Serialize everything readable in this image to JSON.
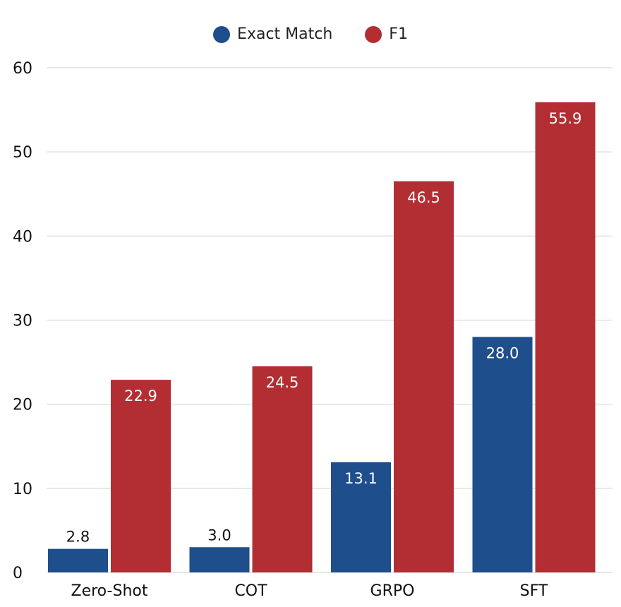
{
  "chart_data": {
    "type": "bar",
    "categories": [
      "Zero-Shot",
      "COT",
      "GRPO",
      "SFT"
    ],
    "series": [
      {
        "name": "Exact Match",
        "values": [
          2.8,
          3.0,
          13.1,
          28.0
        ],
        "color": "#1f4e8c"
      },
      {
        "name": "F1",
        "values": [
          22.9,
          24.5,
          46.5,
          55.9
        ],
        "color": "#b22e32"
      }
    ],
    "value_labels": [
      [
        "2.8",
        "3.0",
        "13.1",
        "28.0"
      ],
      [
        "22.9",
        "24.5",
        "46.5",
        "55.9"
      ]
    ],
    "yticks": [
      "0",
      "10",
      "20",
      "30",
      "40",
      "50",
      "60"
    ],
    "ylim": [
      0,
      60
    ],
    "grid": true,
    "legend_position": "top-center",
    "title": "",
    "xlabel": "",
    "ylabel": ""
  }
}
